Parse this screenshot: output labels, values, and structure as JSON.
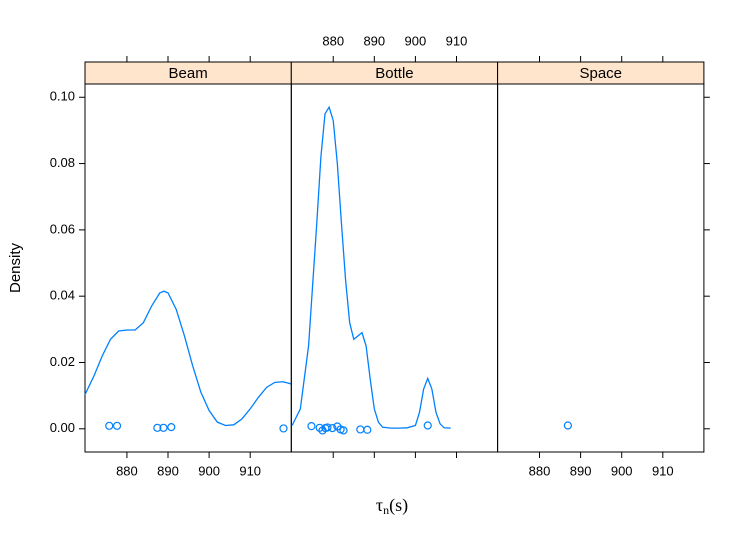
{
  "chart_data": {
    "type": "density",
    "ylabel": "Density",
    "xlabel": {
      "symbol": "τ",
      "subscript": "n",
      "unit": "(s)"
    },
    "xlim": [
      869.8,
      920.0
    ],
    "xticks": [
      880,
      890,
      900,
      910
    ],
    "ylim": [
      -0.007,
      0.104
    ],
    "yticks": [
      {
        "value": 0,
        "label": "0.00"
      },
      {
        "value": 0.02,
        "label": "0.02"
      },
      {
        "value": 0.04,
        "label": "0.04"
      },
      {
        "value": 0.06,
        "label": "0.06"
      },
      {
        "value": 0.08,
        "label": "0.08"
      },
      {
        "value": 0.1,
        "label": "0.10"
      }
    ],
    "color": "#0080ff",
    "strip_color": "#ffe5cc",
    "x_tick_label_sides": [
      "bottom",
      "top",
      "bottom"
    ],
    "panels": [
      {
        "name": "Beam",
        "curve": {
          "x": [
            869.8,
            872,
            874,
            876,
            878,
            880,
            882,
            884,
            886,
            888,
            889,
            890,
            892,
            894,
            896,
            898,
            900,
            902,
            904,
            906,
            908,
            910,
            912,
            914,
            916,
            918,
            920
          ],
          "y": [
            0.0103,
            0.016,
            0.022,
            0.027,
            0.0295,
            0.0298,
            0.0298,
            0.032,
            0.037,
            0.041,
            0.0415,
            0.041,
            0.036,
            0.028,
            0.019,
            0.011,
            0.0055,
            0.002,
            0.001,
            0.0012,
            0.003,
            0.006,
            0.0095,
            0.0125,
            0.014,
            0.0142,
            0.0135
          ]
        },
        "points": {
          "x": [
            875.7,
            877.6,
            887.4,
            888.9,
            890.8,
            918.1
          ],
          "y": [
            0.0009,
            0.0009,
            0.0003,
            0.0003,
            0.0005,
            0.0001
          ]
        }
      },
      {
        "name": "Bottle",
        "curve": {
          "x": [
            870,
            872,
            874,
            876,
            877,
            878,
            879,
            880,
            881,
            882,
            883,
            884,
            885,
            886,
            887,
            888,
            889,
            890,
            891,
            892,
            894,
            896,
            898,
            900,
            901,
            902,
            903,
            904,
            905,
            906,
            907,
            908.6
          ],
          "y": [
            0.001,
            0.006,
            0.025,
            0.062,
            0.082,
            0.095,
            0.097,
            0.093,
            0.08,
            0.062,
            0.045,
            0.032,
            0.027,
            0.028,
            0.029,
            0.025,
            0.015,
            0.006,
            0.002,
            0.0005,
            0.0002,
            0.0002,
            0.0003,
            0.001,
            0.005,
            0.012,
            0.0152,
            0.012,
            0.005,
            0.0015,
            0.0003,
            0.0002
          ]
        },
        "points": {
          "x": [
            874.7,
            876.7,
            877.4,
            878.1,
            878.6,
            879.8,
            881.0,
            881.8,
            882.5,
            886.6,
            888.3,
            903.0
          ],
          "y": [
            0.0008,
            0.0003,
            -0.0005,
            0.0002,
            0.0004,
            0.0002,
            0.0007,
            -0.0002,
            -0.0005,
            -0.0002,
            -0.0003,
            0.001
          ]
        }
      },
      {
        "name": "Space",
        "curve": {
          "x": [],
          "y": []
        },
        "points": {
          "x": [
            886.9
          ],
          "y": [
            0.001
          ]
        }
      }
    ]
  }
}
